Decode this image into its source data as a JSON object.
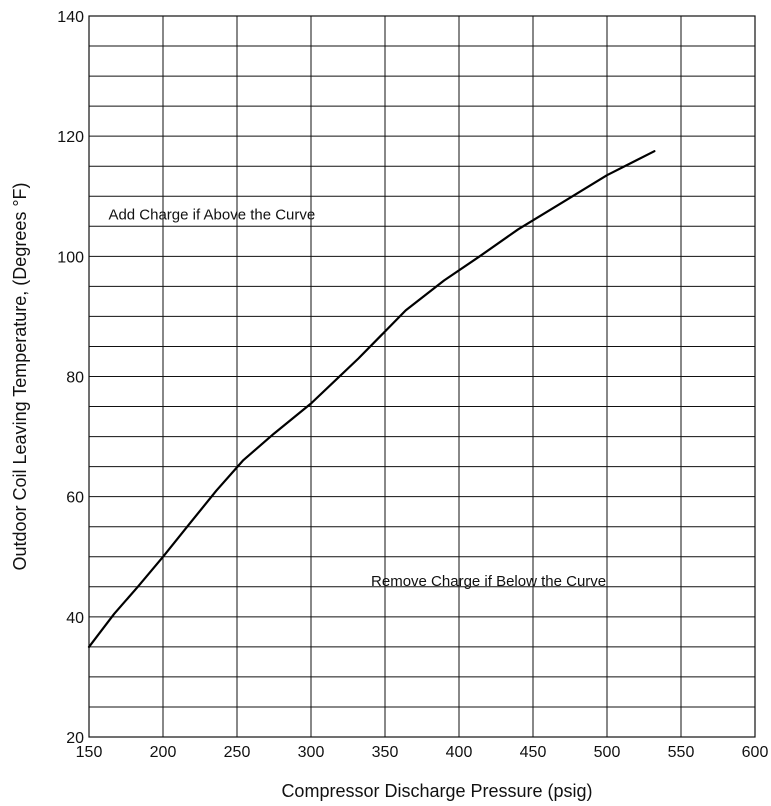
{
  "chart_data": {
    "type": "line",
    "title": "",
    "xlabel": "Compressor Discharge Pressure (psig)",
    "ylabel": "Outdoor Coil Leaving Temperature, (Degrees °F)",
    "xlim": [
      150,
      600
    ],
    "ylim": [
      20,
      140
    ],
    "x_ticks": [
      150,
      200,
      250,
      300,
      350,
      400,
      450,
      500,
      550,
      600
    ],
    "y_ticks": [
      20,
      40,
      60,
      80,
      100,
      120,
      140
    ],
    "x_tick_labels": [
      "150",
      "200",
      "250",
      "300",
      "350",
      "400",
      "450",
      "500",
      "550",
      "600"
    ],
    "y_tick_labels": [
      "20",
      "40",
      "60",
      "80",
      "100",
      "120",
      "140"
    ],
    "grid": true,
    "x_grid_step": 50,
    "y_grid_step": 5,
    "legend": "none",
    "colors": {
      "line": "#000000",
      "grid": "#111111",
      "background": "#ffffff"
    },
    "series": [
      {
        "x": [
          150,
          167,
          183,
          200,
          218,
          236,
          254,
          275,
          300,
          332,
          364,
          390,
          414,
          440,
          470,
          500,
          532
        ],
        "y": [
          35,
          40.5,
          45,
          50,
          55.5,
          61,
          66,
          70.5,
          75.5,
          83,
          91,
          96,
          100,
          104.5,
          109,
          113.5,
          117.5
        ]
      }
    ],
    "annotations": [
      {
        "text": "Add Charge if Above the Curve",
        "x": 233,
        "y": 107
      },
      {
        "text": "Remove Charge if Below the Curve",
        "x": 420,
        "y": 46
      }
    ]
  }
}
